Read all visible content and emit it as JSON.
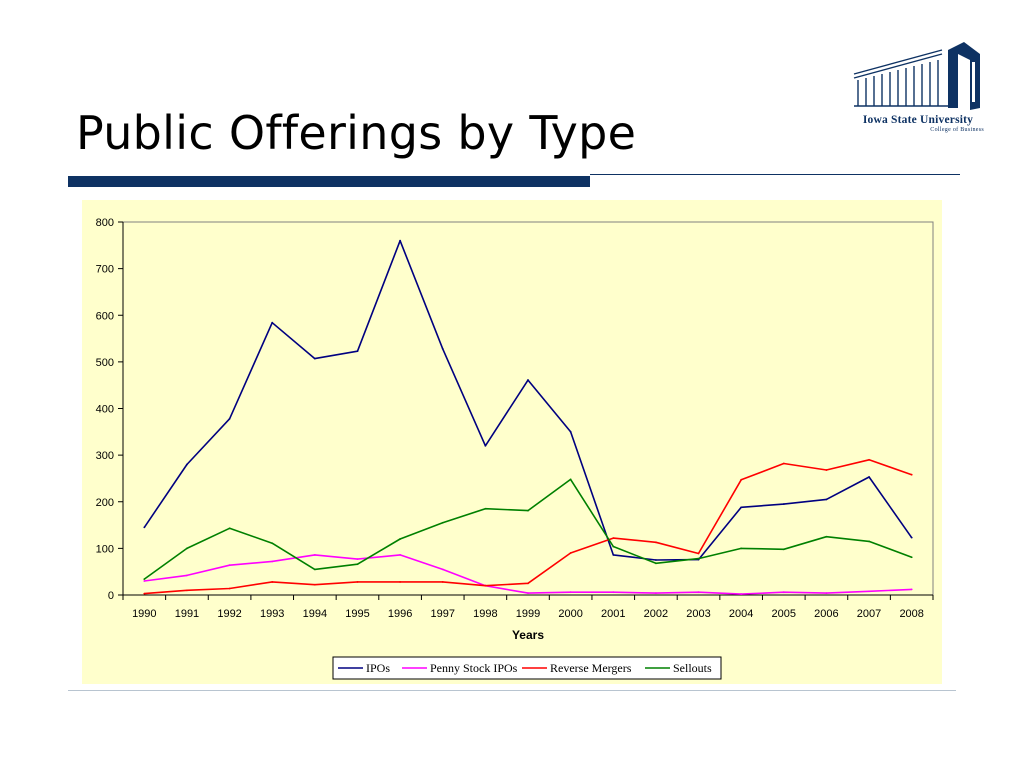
{
  "slide": {
    "title": "Public Offerings by Type",
    "logo_name": "Iowa State University",
    "logo_sub": "College of Business"
  },
  "colors": {
    "title_bar": "#0e3263",
    "plot_background": "#ffffcc",
    "IPOs": "#000080",
    "Penny Stock IPOs": "#ff00ff",
    "Reverse Mergers": "#ff0000",
    "Sellouts": "#008000"
  },
  "chart_data": {
    "type": "line",
    "title": "",
    "xlabel": "Years",
    "ylabel": "",
    "ylim": [
      0,
      800
    ],
    "yticks": [
      0,
      100,
      200,
      300,
      400,
      500,
      600,
      700,
      800
    ],
    "grid": false,
    "legend_position": "bottom",
    "categories": [
      "1990",
      "1991",
      "1992",
      "1993",
      "1994",
      "1995",
      "1996",
      "1997",
      "1998",
      "1999",
      "2000",
      "2001",
      "2002",
      "2003",
      "2004",
      "2005",
      "2006",
      "2007",
      "2008"
    ],
    "series": [
      {
        "name": "IPOs",
        "values": [
          145,
          280,
          378,
          584,
          507,
          523,
          760,
          528,
          320,
          461,
          350,
          86,
          75,
          76,
          188,
          195,
          205,
          253,
          123
        ]
      },
      {
        "name": "Penny Stock IPOs",
        "values": [
          30,
          42,
          64,
          72,
          86,
          77,
          86,
          55,
          20,
          4,
          6,
          6,
          4,
          6,
          2,
          6,
          4,
          8,
          12
        ]
      },
      {
        "name": "Reverse Mergers",
        "values": [
          3,
          10,
          14,
          28,
          22,
          28,
          28,
          28,
          20,
          25,
          90,
          122,
          113,
          89,
          247,
          282,
          268,
          290,
          258
        ]
      },
      {
        "name": "Sellouts",
        "values": [
          34,
          100,
          143,
          111,
          55,
          66,
          120,
          155,
          185,
          181,
          248,
          104,
          68,
          78,
          100,
          98,
          125,
          115,
          81
        ]
      }
    ]
  }
}
